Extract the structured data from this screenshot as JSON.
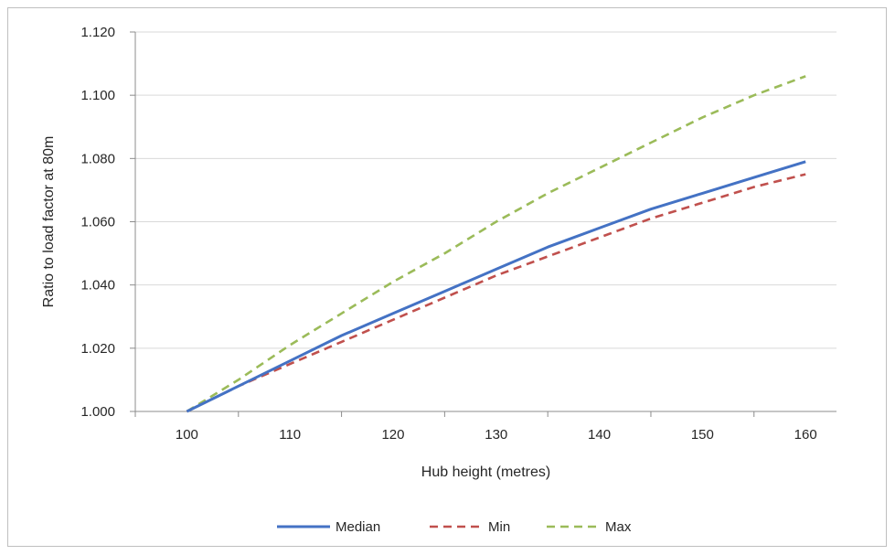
{
  "chart_data": {
    "type": "line",
    "title": "",
    "xlabel": "Hub height (metres)",
    "ylabel": "Ratio to load factor at 80m",
    "xlim": [
      95,
      163
    ],
    "ylim": [
      1.0,
      1.12
    ],
    "x_ticks": [
      100,
      110,
      120,
      130,
      140,
      150,
      160
    ],
    "x_tick_labels": [
      "100",
      "110",
      "120",
      "130",
      "140",
      "150",
      "160"
    ],
    "y_ticks": [
      1.0,
      1.02,
      1.04,
      1.06,
      1.08,
      1.1,
      1.12
    ],
    "y_tick_labels": [
      "1.000",
      "1.020",
      "1.040",
      "1.060",
      "1.080",
      "1.100",
      "1.120"
    ],
    "grid": "horizontal",
    "legend_position": "bottom",
    "x": [
      100,
      105,
      110,
      115,
      120,
      125,
      130,
      135,
      140,
      145,
      150,
      155,
      160
    ],
    "series": [
      {
        "name": "Median",
        "color": "#4472C4",
        "dash": "solid",
        "values": [
          1.0,
          1.008,
          1.016,
          1.024,
          1.031,
          1.038,
          1.045,
          1.052,
          1.058,
          1.064,
          1.069,
          1.074,
          1.079
        ]
      },
      {
        "name": "Min",
        "color": "#C0504D",
        "dash": "dashed",
        "values": [
          1.0,
          1.008,
          1.015,
          1.022,
          1.029,
          1.036,
          1.043,
          1.049,
          1.055,
          1.061,
          1.066,
          1.071,
          1.075
        ]
      },
      {
        "name": "Max",
        "color": "#9BBB59",
        "dash": "dashed",
        "values": [
          1.0,
          1.01,
          1.021,
          1.031,
          1.041,
          1.05,
          1.06,
          1.069,
          1.077,
          1.085,
          1.093,
          1.1,
          1.106
        ]
      }
    ]
  }
}
